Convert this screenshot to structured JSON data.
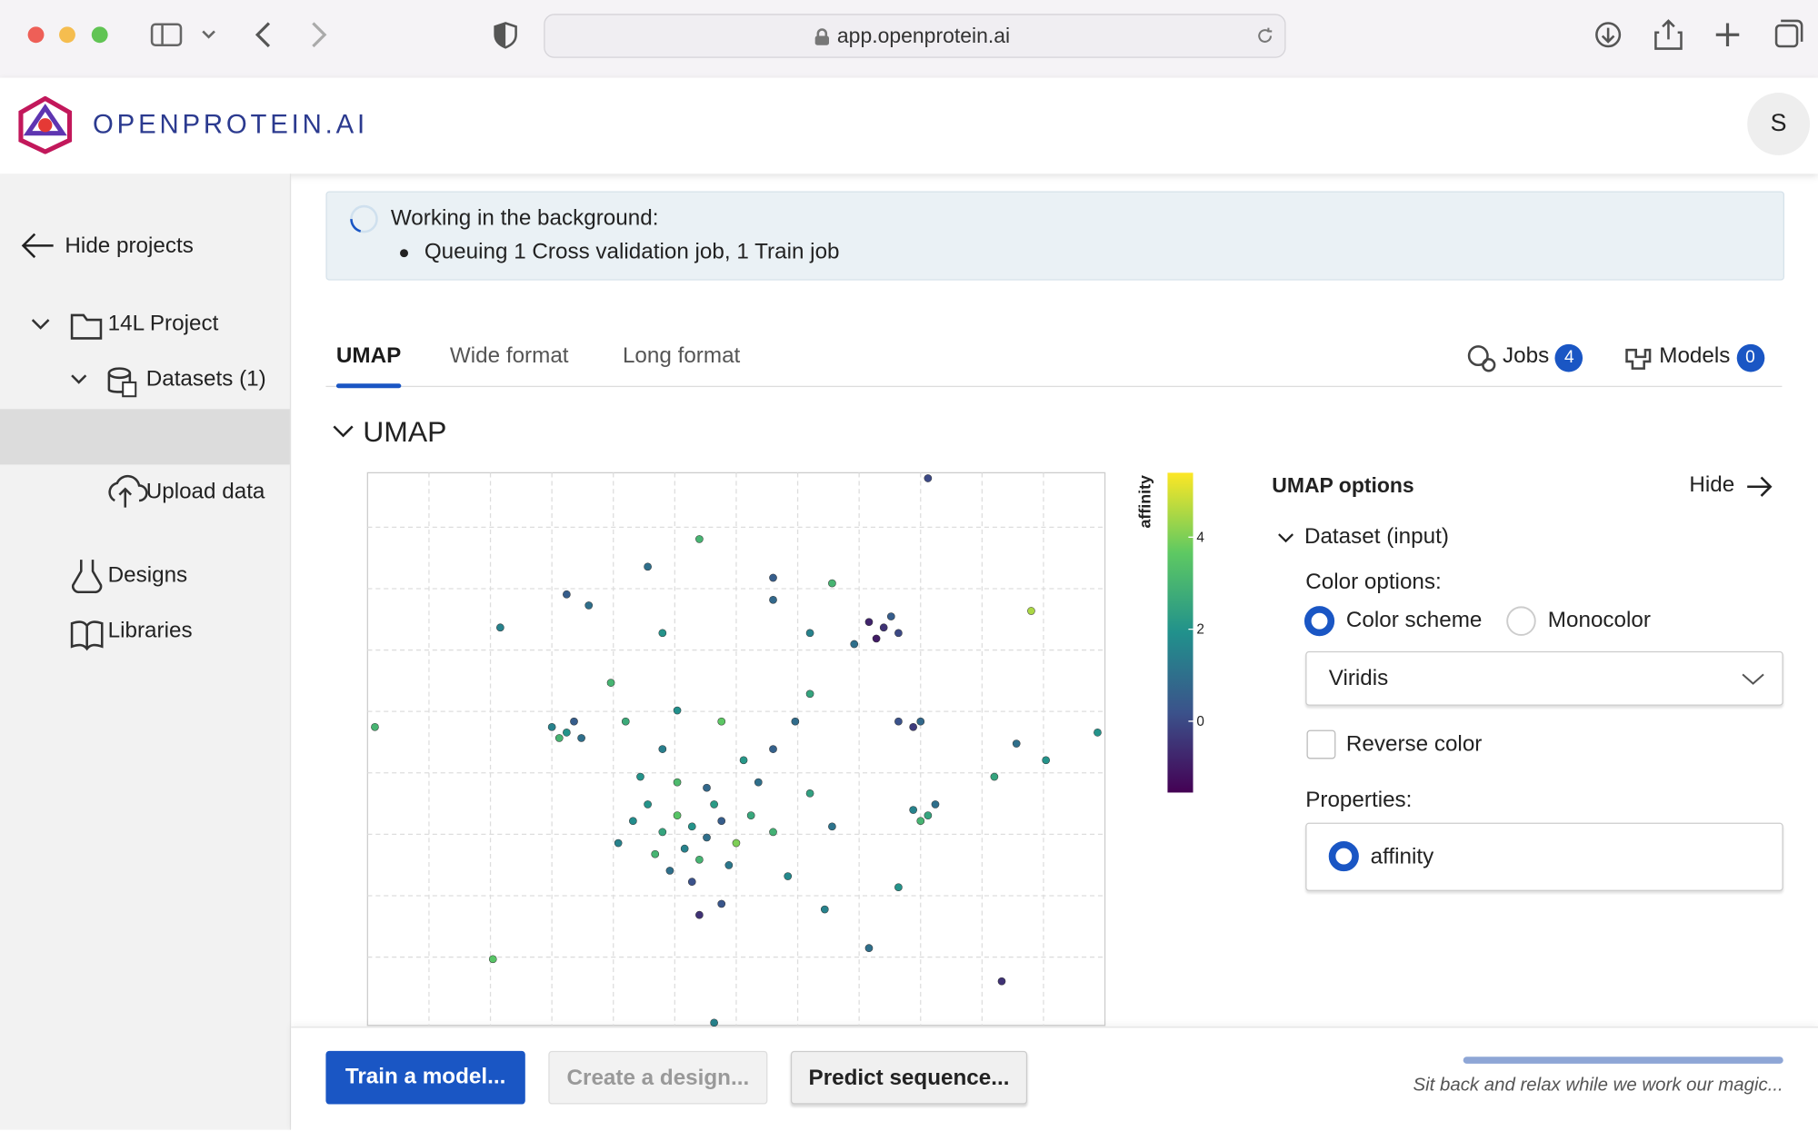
{
  "browser": {
    "url": "app.openprotein.ai"
  },
  "header": {
    "brand": "OPENPROTEIN.AI",
    "avatar": "S"
  },
  "sidebar": {
    "hide": "Hide projects",
    "project": "14L Project",
    "datasets": "Datasets (1)",
    "upload": "Upload data",
    "designs": "Designs",
    "libraries": "Libraries"
  },
  "banner": {
    "title": "Working in the background:",
    "items": [
      "Queuing 1 Cross validation job, 1 Train job"
    ]
  },
  "tabs": [
    "UMAP",
    "Wide format",
    "Long format"
  ],
  "jobs": {
    "label": "Jobs",
    "count": 4
  },
  "models": {
    "label": "Models",
    "count": 0
  },
  "section_title": "UMAP",
  "chart_data": {
    "type": "scatter",
    "colorbar_label": "affinity",
    "clim": [
      -1.55,
      5.4
    ],
    "cticks": [
      0,
      2,
      4
    ],
    "xlim": [
      0,
      100
    ],
    "ylim": [
      0,
      100
    ],
    "x": [
      44,
      42,
      46,
      40,
      48,
      45,
      43,
      38,
      50,
      47,
      41,
      44,
      39,
      36,
      52,
      49,
      46,
      42,
      37,
      53,
      55,
      34,
      48,
      45,
      57,
      51,
      40,
      55,
      60,
      63,
      58,
      48,
      42,
      35,
      68,
      70,
      72,
      69,
      71,
      66,
      25,
      27,
      28,
      26,
      29,
      74,
      76,
      77,
      75,
      72,
      74,
      75,
      38,
      55,
      76,
      45,
      27,
      18,
      30,
      40,
      60,
      63,
      90,
      99,
      88,
      92,
      1,
      17,
      68,
      86,
      47,
      72,
      62,
      55,
      60,
      33,
      85
    ],
    "y": [
      36,
      38,
      34,
      35,
      37,
      30,
      32,
      40,
      33,
      40,
      28,
      26,
      31,
      37,
      38,
      29,
      43,
      44,
      45,
      44,
      35,
      33,
      22,
      20,
      27,
      48,
      50,
      50,
      42,
      36,
      55,
      55,
      57,
      55,
      73,
      72,
      71,
      70,
      74,
      69,
      54,
      53,
      55,
      52,
      52,
      39,
      38,
      40,
      37,
      55,
      54,
      55,
      83,
      81,
      99,
      88,
      78,
      72,
      76,
      71,
      71,
      80,
      75,
      53,
      51,
      48,
      54,
      12,
      14,
      8,
      0.5,
      25,
      21,
      77,
      60,
      62,
      45
    ],
    "values": [
      2,
      3.5,
      1,
      2.5,
      0.5,
      3,
      1.5,
      2,
      4,
      2.2,
      1,
      0.2,
      3,
      1.8,
      2.6,
      1.2,
      0.8,
      3.2,
      2,
      1,
      2.9,
      1.5,
      0.3,
      -0.5,
      1.7,
      2.1,
      1.4,
      0.6,
      2.4,
      1.1,
      0.9,
      3.6,
      1.9,
      2.7,
      -0.8,
      -0.5,
      0,
      -1,
      0.5,
      1,
      1.5,
      2,
      0.5,
      3,
      1,
      1.5,
      2.5,
      1,
      3,
      0.2,
      -0.3,
      0.8,
      1,
      0.5,
      0,
      3,
      0.5,
      1.5,
      1,
      2,
      1.5,
      3,
      4.5,
      2,
      1,
      2,
      3,
      3.5,
      1,
      -0.5,
      1.5,
      2,
      1.5,
      0.8,
      2.5,
      3,
      2.5
    ]
  },
  "options": {
    "title": "UMAP options",
    "hide": "Hide",
    "dataset": "Dataset (input)",
    "color_label": "Color options:",
    "radios": [
      "Color scheme",
      "Monocolor"
    ],
    "scheme": "Viridis",
    "reverse": "Reverse color",
    "properties_label": "Properties:",
    "property": "affinity"
  },
  "footer": {
    "buttons": [
      "Train a model...",
      "Create a design...",
      "Predict sequence..."
    ],
    "status": "Sit back and relax while we work our magic..."
  }
}
